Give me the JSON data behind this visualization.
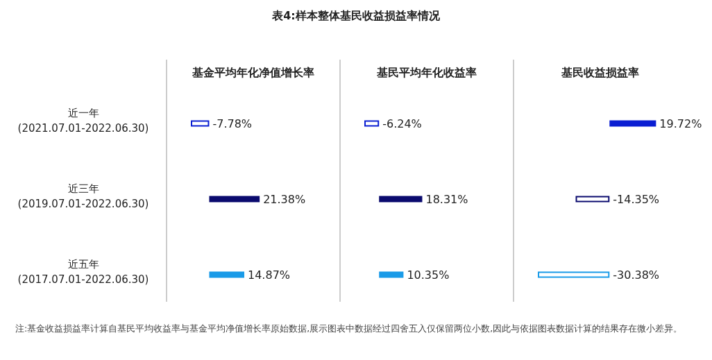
{
  "chart_data": [
    {
      "type": "bar",
      "orientation": "horizontal",
      "subtitle": "基金平均年化净值增长率",
      "categories": [
        "近一年\n(2021.07.01-2022.06.30)",
        "近三年\n(2019.07.01-2022.06.30)",
        "近五年\n(2017.07.01-2022.06.30)"
      ],
      "values": [
        -7.78,
        21.38,
        14.87
      ],
      "colors": [
        "#0a1ed2",
        "#0a0a6e",
        "#1a9be8"
      ],
      "value_labels": [
        "-7.78%",
        "21.38%",
        "14.87%"
      ],
      "tick_labels": "y"
    },
    {
      "type": "bar",
      "orientation": "horizontal",
      "title": "表4:样本整体基民收益损益率情况",
      "subtitle": "基民平均年化收益率",
      "values": [
        -6.24,
        18.31,
        10.35
      ],
      "colors": [
        "#0a1ed2",
        "#0a0a6e",
        "#1a9be8"
      ],
      "value_labels": [
        "-6.24%",
        "18.31%",
        "10.35%"
      ],
      "tick_labels": false,
      "annotations": [
        "注:基金收益损益率计算自基民平均收益率与基金平均净值增长率原始数据,展示图表中数据经过四舍五入仅保留两位小数,因此与依据图表数据计算的结果存在微小差异。"
      ]
    },
    {
      "type": "bar",
      "orientation": "horizontal",
      "subtitle": "基民收益损益率",
      "values": [
        19.72,
        -14.35,
        -30.38
      ],
      "colors": [
        "#0a1ed2",
        "#0a0a6e",
        "#1a9be8"
      ],
      "value_labels": [
        "19.72%",
        "-14.35%",
        "-30.38%"
      ],
      "tick_labels": false
    }
  ]
}
